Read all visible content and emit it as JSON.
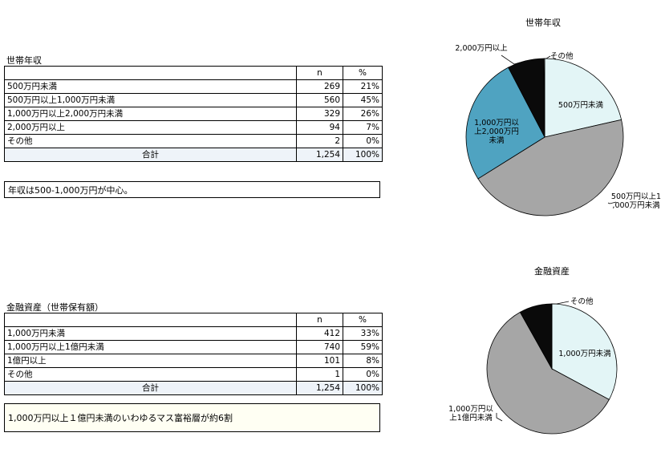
{
  "sections": [
    {
      "title": "世帯年収",
      "headers": [
        "",
        "n",
        "%"
      ],
      "rows": [
        {
          "label": "500万円未満",
          "n": "269",
          "pct": "21%"
        },
        {
          "label": "500万円以上1,000万円未満",
          "n": "560",
          "pct": "45%"
        },
        {
          "label": "1,000万円以上2,000万円未満",
          "n": "329",
          "pct": "26%"
        },
        {
          "label": "2,000万円以上",
          "n": "94",
          "pct": "7%"
        },
        {
          "label": "その他",
          "n": "2",
          "pct": "0%"
        }
      ],
      "total": {
        "label": "合計",
        "n": "1,254",
        "pct": "100%"
      },
      "note": "年収は500-1,000万円が中心。"
    },
    {
      "title": "金融資産（世帯保有額）",
      "headers": [
        "",
        "n",
        "%"
      ],
      "rows": [
        {
          "label": "1,000万円未満",
          "n": "412",
          "pct": "33%"
        },
        {
          "label": "1,000万円以上1億円未満",
          "n": "740",
          "pct": "59%"
        },
        {
          "label": "1億円以上",
          "n": "101",
          "pct": "8%"
        },
        {
          "label": "その他",
          "n": "1",
          "pct": "0%"
        }
      ],
      "total": {
        "label": "合計",
        "n": "1,254",
        "pct": "100%"
      },
      "note": "1,000万円以上１億円未満のいわゆるマス富裕層が約6割"
    }
  ],
  "chart_data": [
    {
      "type": "pie",
      "title": "世帯年収",
      "slices": [
        {
          "label": "500万円未満",
          "value": 269,
          "color": "#e3f5f6"
        },
        {
          "label": "500万円以上1,000万円未満",
          "value": 560,
          "color": "#a6a6a6"
        },
        {
          "label": "1,000万円以上2,000万円未満",
          "value": 329,
          "color": "#4fa3c1"
        },
        {
          "label": "2,000万円以上",
          "value": 94,
          "color": "#0a0a0a"
        },
        {
          "label": "その他",
          "value": 2,
          "color": "#ffffff"
        }
      ]
    },
    {
      "type": "pie",
      "title": "金融資産",
      "slices": [
        {
          "label": "1,000万円未満",
          "value": 412,
          "color": "#e3f5f6"
        },
        {
          "label": "1,000万円以上1億円未満",
          "value": 740,
          "color": "#a6a6a6"
        },
        {
          "label": "1億円以上",
          "value": 101,
          "color": "#0a0a0a"
        },
        {
          "label": "その他",
          "value": 1,
          "color": "#ffffff"
        }
      ]
    }
  ]
}
